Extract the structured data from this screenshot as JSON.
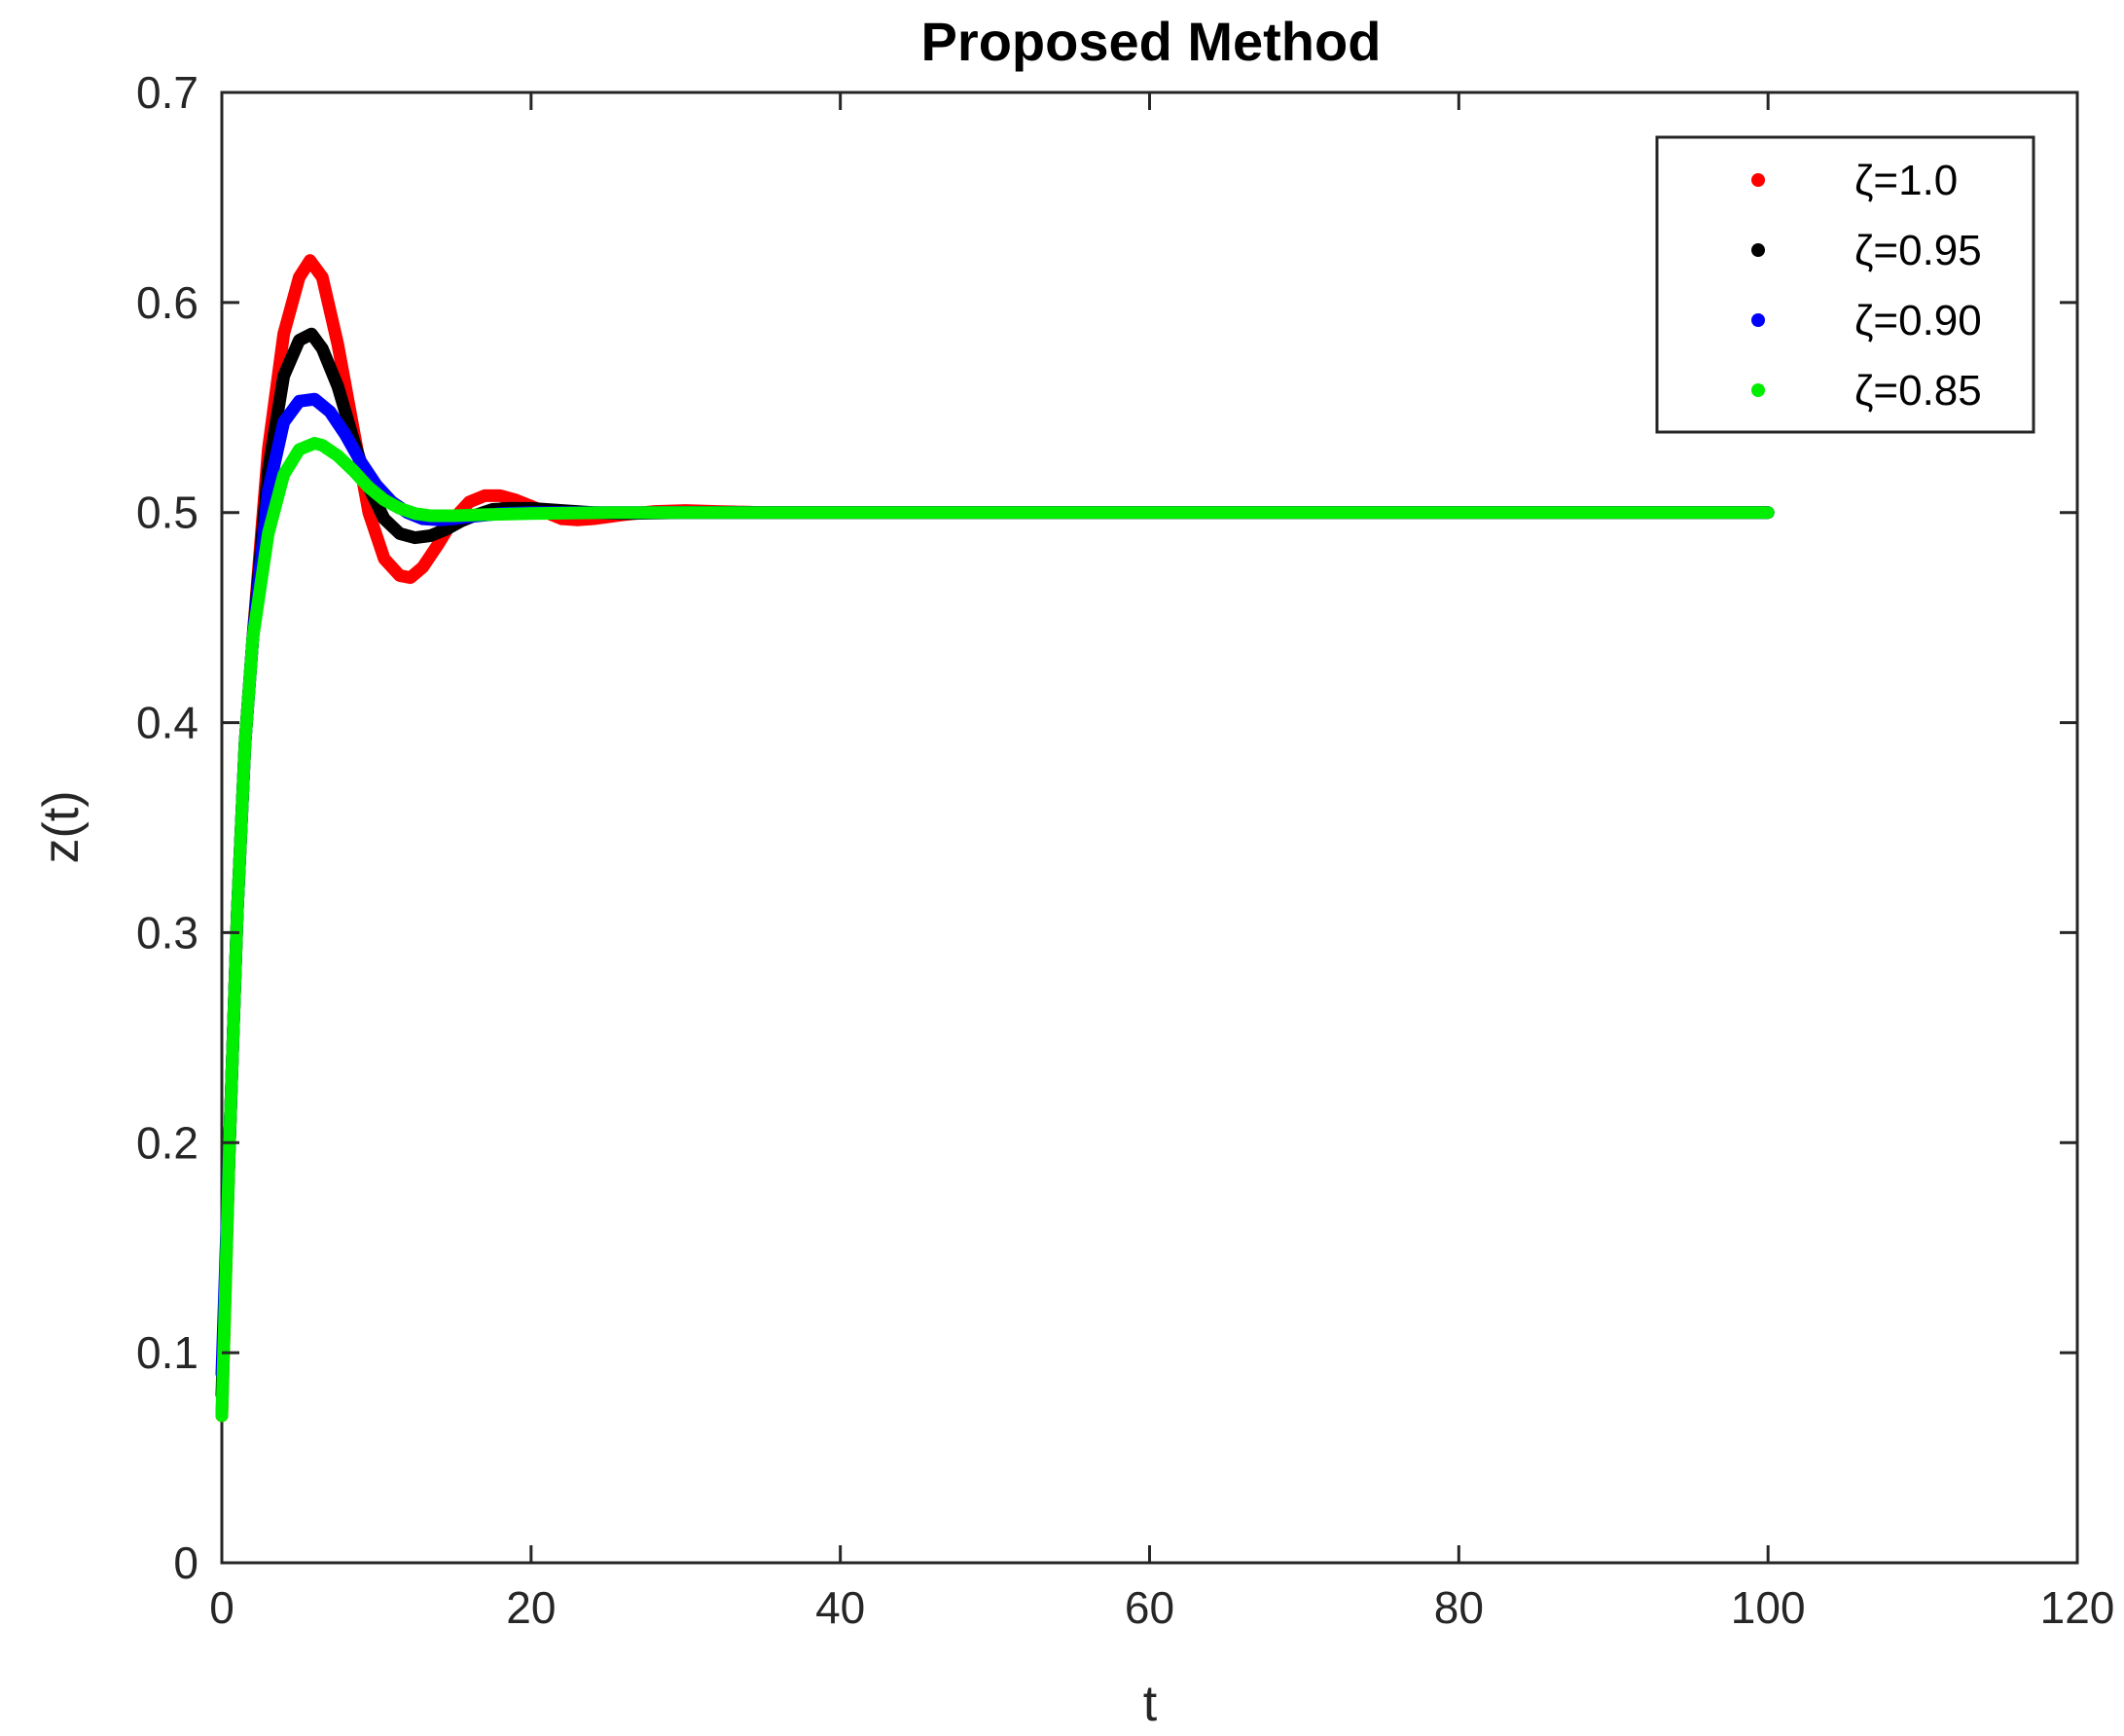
{
  "chart_data": {
    "type": "line",
    "title": "Proposed Method",
    "xlabel": "t",
    "ylabel": "z(t)",
    "xlim": [
      0,
      120
    ],
    "ylim": [
      0,
      0.7
    ],
    "xticks": [
      0,
      20,
      40,
      60,
      80,
      100,
      120
    ],
    "yticks": [
      0,
      0.1,
      0.2,
      0.3,
      0.4,
      0.5,
      0.6,
      0.7
    ],
    "xtick_labels": [
      "0",
      "20",
      "40",
      "60",
      "80",
      "100",
      "120"
    ],
    "ytick_labels": [
      "0",
      "0.1",
      "0.2",
      "0.3",
      "0.4",
      "0.5",
      "0.6",
      "0.7"
    ],
    "grid": false,
    "legend_position": "top-right",
    "series": [
      {
        "name": "ζ=1.0",
        "color": "#ff0000",
        "x": [
          0,
          0.5,
          1,
          1.5,
          2,
          3,
          4,
          5,
          5.7,
          6.5,
          7.5,
          8.5,
          9.5,
          10.5,
          11.5,
          12.2,
          13,
          14,
          15,
          16,
          17,
          18,
          19,
          20,
          21,
          22,
          23,
          24,
          25,
          26,
          28,
          30,
          32,
          35,
          40,
          50,
          60,
          70,
          80,
          90,
          100
        ],
        "y": [
          0.07,
          0.2,
          0.31,
          0.39,
          0.44,
          0.53,
          0.585,
          0.612,
          0.62,
          0.612,
          0.58,
          0.54,
          0.5,
          0.478,
          0.47,
          0.469,
          0.474,
          0.485,
          0.497,
          0.505,
          0.508,
          0.508,
          0.506,
          0.503,
          0.5,
          0.497,
          0.4965,
          0.497,
          0.498,
          0.499,
          0.5005,
          0.501,
          0.5005,
          0.5,
          0.5,
          0.5,
          0.5,
          0.5,
          0.5,
          0.5,
          0.5
        ]
      },
      {
        "name": "ζ=0.95",
        "color": "#000000",
        "x": [
          0,
          0.5,
          1,
          1.5,
          2,
          3,
          4,
          5,
          5.8,
          6.5,
          7.5,
          8.5,
          9.5,
          10.5,
          11.5,
          12.5,
          13.5,
          14.5,
          15.5,
          16.5,
          17.5,
          18.5,
          20,
          22,
          24,
          26,
          30,
          40,
          50,
          60,
          70,
          80,
          90,
          100
        ],
        "y": [
          0.08,
          0.2,
          0.31,
          0.39,
          0.44,
          0.52,
          0.565,
          0.582,
          0.585,
          0.578,
          0.56,
          0.535,
          0.512,
          0.497,
          0.49,
          0.488,
          0.489,
          0.492,
          0.496,
          0.499,
          0.5015,
          0.502,
          0.502,
          0.501,
          0.5,
          0.4995,
          0.5,
          0.5,
          0.5,
          0.5,
          0.5,
          0.5,
          0.5,
          0.5
        ]
      },
      {
        "name": "ζ=0.90",
        "color": "#0000ff",
        "x": [
          0,
          0.5,
          1,
          1.5,
          2,
          3,
          4,
          5,
          6,
          7,
          8,
          9,
          10,
          11,
          12,
          13,
          14,
          15,
          16,
          18,
          20,
          24,
          30,
          40,
          50,
          60,
          70,
          80,
          90,
          100
        ],
        "y": [
          0.09,
          0.2,
          0.31,
          0.39,
          0.44,
          0.51,
          0.543,
          0.553,
          0.554,
          0.548,
          0.537,
          0.524,
          0.513,
          0.505,
          0.5,
          0.497,
          0.4965,
          0.497,
          0.498,
          0.4995,
          0.5,
          0.5,
          0.5,
          0.5,
          0.5,
          0.5,
          0.5,
          0.5,
          0.5,
          0.5
        ]
      },
      {
        "name": "ζ=0.85",
        "color": "#00ee00",
        "x": [
          0,
          0.5,
          1,
          1.5,
          2,
          3,
          4,
          5,
          6,
          6.5,
          7.5,
          8.5,
          9.5,
          10.5,
          11.5,
          12.5,
          13.5,
          15,
          17,
          20,
          25,
          30,
          40,
          50,
          60,
          70,
          80,
          90,
          100
        ],
        "y": [
          0.07,
          0.2,
          0.31,
          0.39,
          0.44,
          0.49,
          0.518,
          0.53,
          0.533,
          0.532,
          0.527,
          0.52,
          0.512,
          0.506,
          0.502,
          0.4995,
          0.4985,
          0.4985,
          0.499,
          0.4995,
          0.5,
          0.5,
          0.5,
          0.5,
          0.5,
          0.5,
          0.5,
          0.5,
          0.5
        ]
      }
    ]
  }
}
